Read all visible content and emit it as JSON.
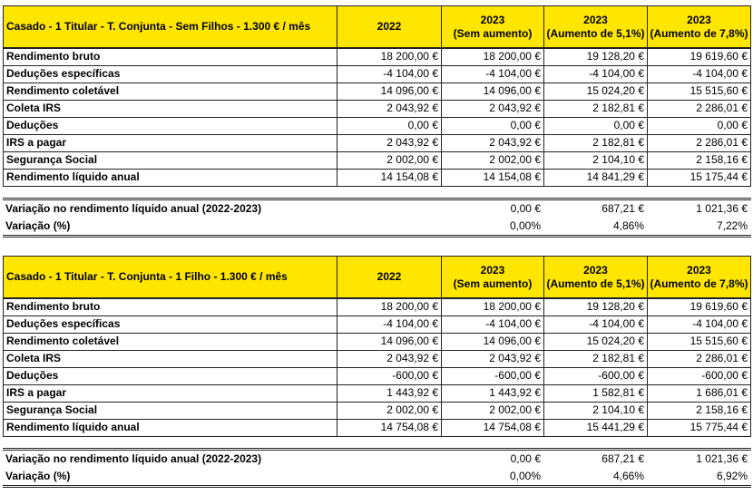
{
  "tables": [
    {
      "title": "Casado - 1 Titular - T. Conjunta - Sem Filhos - 1.300 € / mês",
      "columns": [
        [
          "2022"
        ],
        [
          "2023",
          "(Sem aumento)"
        ],
        [
          "2023",
          "(Aumento de 5,1%)"
        ],
        [
          "2023",
          "(Aumento de 7,8%)"
        ]
      ],
      "rows": [
        {
          "label": "Rendimento bruto",
          "values": [
            "18 200,00 €",
            "18 200,00 €",
            "19 128,20 €",
            "19 619,60 €"
          ]
        },
        {
          "label": "Deduções específicas",
          "values": [
            "-4 104,00 €",
            "-4 104,00 €",
            "-4 104,00 €",
            "-4 104,00 €"
          ]
        },
        {
          "label": "Rendimento coletável",
          "values": [
            "14 096,00 €",
            "14 096,00 €",
            "15 024,20 €",
            "15 515,60 €"
          ]
        },
        {
          "label": "Coleta IRS",
          "values": [
            "2 043,92 €",
            "2 043,92 €",
            "2 182,81 €",
            "2 286,01 €"
          ]
        },
        {
          "label": "Deduções",
          "values": [
            "0,00 €",
            "0,00 €",
            "0,00 €",
            "0,00 €"
          ]
        },
        {
          "label": "IRS a pagar",
          "values": [
            "2 043,92 €",
            "2 043,92 €",
            "2 182,81 €",
            "2 286,01 €"
          ]
        },
        {
          "label": "Segurança Social",
          "values": [
            "2 002,00 €",
            "2 002,00 €",
            "2 104,10 €",
            "2 158,16 €"
          ]
        },
        {
          "label": "Rendimento líquido anual",
          "values": [
            "14 154,08 €",
            "14 154,08 €",
            "14 841,29 €",
            "15 175,44 €"
          ]
        }
      ],
      "variation": [
        {
          "label": "Variação no rendimento líquido anual (2022-2023)",
          "values": [
            "0,00 €",
            "687,21 €",
            "1 021,36 €"
          ]
        },
        {
          "label": "Variação (%)",
          "values": [
            "0,00%",
            "4,86%",
            "7,22%"
          ]
        }
      ]
    },
    {
      "title": "Casado - 1 Titular - T. Conjunta - 1 Filho - 1.300 € / mês",
      "columns": [
        [
          "2022"
        ],
        [
          "2023",
          "(Sem aumento)"
        ],
        [
          "2023",
          "(Aumento de 5,1%)"
        ],
        [
          "2023",
          "(Aumento de 7,8%)"
        ]
      ],
      "rows": [
        {
          "label": "Rendimento bruto",
          "values": [
            "18 200,00 €",
            "18 200,00 €",
            "19 128,20 €",
            "19 619,60 €"
          ]
        },
        {
          "label": "Deduções específicas",
          "values": [
            "-4 104,00 €",
            "-4 104,00 €",
            "-4 104,00 €",
            "-4 104,00 €"
          ]
        },
        {
          "label": "Rendimento coletável",
          "values": [
            "14 096,00 €",
            "14 096,00 €",
            "15 024,20 €",
            "15 515,60 €"
          ]
        },
        {
          "label": "Coleta IRS",
          "values": [
            "2 043,92 €",
            "2 043,92 €",
            "2 182,81 €",
            "2 286,01 €"
          ]
        },
        {
          "label": "Deduções",
          "values": [
            "-600,00 €",
            "-600,00 €",
            "-600,00 €",
            "-600,00 €"
          ]
        },
        {
          "label": "IRS a pagar",
          "values": [
            "1 443,92 €",
            "1 443,92 €",
            "1 582,81 €",
            "1 686,01 €"
          ]
        },
        {
          "label": "Segurança Social",
          "values": [
            "2 002,00 €",
            "2 002,00 €",
            "2 104,10 €",
            "2 158,16 €"
          ]
        },
        {
          "label": "Rendimento líquido anual",
          "values": [
            "14 754,08 €",
            "14 754,08 €",
            "15 441,29 €",
            "15 775,44 €"
          ]
        }
      ],
      "variation": [
        {
          "label": "Variação no rendimento líquido anual (2022-2023)",
          "values": [
            "0,00 €",
            "687,21 €",
            "1 021,36 €"
          ]
        },
        {
          "label": "Variação (%)",
          "values": [
            "0,00%",
            "4,66%",
            "6,92%"
          ]
        }
      ]
    }
  ]
}
